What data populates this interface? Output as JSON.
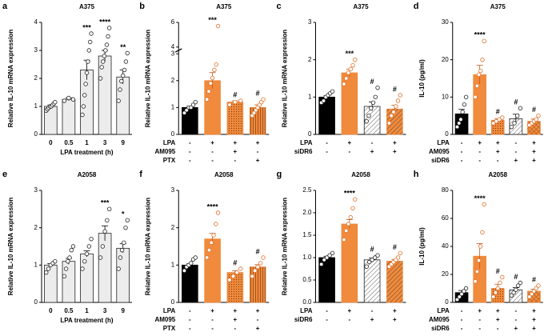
{
  "chart_data": [
    {
      "type": "bar",
      "panel": "a",
      "title": "A375",
      "ylabel": "Relative IL-10 mRNA expression",
      "xlabel": "LPA treatment (h)",
      "categories": [
        "0",
        "0.5",
        "1",
        "3",
        "9"
      ],
      "values": [
        1.0,
        1.25,
        2.3,
        2.8,
        2.05
      ],
      "errors": [
        0.05,
        0.05,
        0.35,
        0.2,
        0.25
      ],
      "points": [
        [
          0.85,
          0.9,
          0.95,
          1.0,
          1.0,
          1.05,
          1.1,
          1.15
        ],
        [
          1.2,
          1.3,
          1.25
        ],
        [
          0.7,
          1.0,
          1.4,
          1.8,
          2.2,
          2.6,
          3.0,
          3.3,
          3.6
        ],
        [
          2.0,
          2.4,
          2.6,
          2.8,
          3.0,
          3.2,
          3.5,
          3.8
        ],
        [
          1.2,
          1.6,
          1.9,
          2.1,
          2.3,
          2.6,
          2.9
        ]
      ],
      "colors": [
        "#ececec",
        "#ececec",
        "#ececec",
        "#ececec",
        "#ececec"
      ],
      "patterns": [
        null,
        null,
        null,
        null,
        null
      ],
      "annotations": [
        null,
        null,
        "***",
        "****",
        "**"
      ],
      "ylim": [
        0,
        4
      ],
      "yticks": [
        0,
        1,
        2,
        3,
        4
      ]
    },
    {
      "type": "bar",
      "panel": "b",
      "title": "A375",
      "ylabel": "Relative IL-10 mRNA expression",
      "conditions": [
        {
          "name": "LPA",
          "signs": [
            "-",
            "+",
            "+",
            "+"
          ]
        },
        {
          "name": "AM095",
          "signs": [
            "-",
            "-",
            "+",
            "-"
          ]
        },
        {
          "name": "PTX",
          "signs": [
            "-",
            "-",
            "-",
            "+"
          ]
        }
      ],
      "values": [
        1.0,
        2.0,
        1.2,
        1.0
      ],
      "errors": [
        0.05,
        0.3,
        0.05,
        0.1
      ],
      "points": [
        [
          0.8,
          0.9,
          1.0,
          1.0,
          1.1,
          1.2
        ],
        [
          1.3,
          1.6,
          1.9,
          2.1,
          2.4,
          2.6,
          5.7
        ],
        [
          1.1,
          1.2,
          1.25
        ],
        [
          0.7,
          0.8,
          0.9,
          1.0,
          1.1,
          1.2,
          1.3
        ]
      ],
      "colors": [
        "#000000",
        "#f08a3c",
        "#f08a3c",
        "#f08a3c"
      ],
      "patterns": [
        null,
        null,
        "dots",
        "vstripes"
      ],
      "annotations": [
        null,
        "***",
        "#",
        "#"
      ],
      "ylim": [
        0,
        6
      ],
      "ybreak": [
        3,
        4
      ],
      "yticks": [
        0,
        1,
        2,
        3,
        4,
        6
      ]
    },
    {
      "type": "bar",
      "panel": "c",
      "title": "A375",
      "ylabel": "Relative IL-10 mRNA expression",
      "conditions": [
        {
          "name": "LPA",
          "signs": [
            "-",
            "+",
            "-",
            "+"
          ]
        },
        {
          "name": "siDR6",
          "signs": [
            "-",
            "-",
            "+",
            "+"
          ]
        }
      ],
      "values": [
        1.0,
        1.65,
        0.75,
        0.68
      ],
      "errors": [
        0.04,
        0.1,
        0.12,
        0.1
      ],
      "points": [
        [
          0.85,
          0.9,
          1.0,
          1.05,
          1.1,
          1.15
        ],
        [
          1.35,
          1.5,
          1.65,
          1.75,
          1.85,
          2.0
        ],
        [
          0.35,
          0.5,
          0.7,
          0.85,
          1.0,
          1.25
        ],
        [
          0.3,
          0.5,
          0.6,
          0.75,
          0.9,
          1.05
        ]
      ],
      "colors": [
        "#000000",
        "#f08a3c",
        "#ffffff",
        "#f08a3c"
      ],
      "patterns": [
        null,
        null,
        "hatch",
        "hatch"
      ],
      "annotations": [
        null,
        "***",
        "#",
        "#"
      ],
      "ylim": [
        0,
        3
      ],
      "yticks": [
        0,
        1,
        2,
        3
      ]
    },
    {
      "type": "bar",
      "panel": "d",
      "title": "A375",
      "ylabel": "IL-10 (pg/ml)",
      "conditions": [
        {
          "name": "LPA",
          "signs": [
            "-",
            "+",
            "+",
            "-",
            "+"
          ]
        },
        {
          "name": "AM095",
          "signs": [
            "-",
            "-",
            "+",
            "-",
            "+"
          ]
        },
        {
          "name": "siDR6",
          "signs": [
            "-",
            "-",
            "-",
            "+",
            "+"
          ]
        }
      ],
      "values": [
        5.5,
        16,
        3.8,
        4.2,
        3.5
      ],
      "errors": [
        1.2,
        2.5,
        0.4,
        1.2,
        0.6
      ],
      "points": [
        [
          2,
          3,
          4,
          6,
          8,
          10
        ],
        [
          10,
          13,
          16,
          17,
          20,
          25
        ],
        [
          3,
          3.5,
          4,
          4.5
        ],
        [
          2,
          3,
          5,
          7
        ],
        [
          2.5,
          3,
          3.5,
          4,
          5
        ]
      ],
      "colors": [
        "#000000",
        "#f08a3c",
        "#f08a3c",
        "#ffffff",
        "#f08a3c"
      ],
      "patterns": [
        null,
        null,
        "dots",
        "hatch",
        "crosshatch"
      ],
      "annotations": [
        null,
        "****",
        "#",
        "#",
        "#"
      ],
      "ylim": [
        0,
        30
      ],
      "yticks": [
        0,
        10,
        20,
        30
      ]
    },
    {
      "type": "bar",
      "panel": "e",
      "title": "A2058",
      "ylabel": "Relative IL-10 mRNA expression",
      "xlabel": "LPA treatment (h)",
      "categories": [
        "0",
        "0.5",
        "1",
        "3",
        "9"
      ],
      "values": [
        1.0,
        1.1,
        1.3,
        1.85,
        1.45
      ],
      "errors": [
        0.04,
        0.08,
        0.08,
        0.2,
        0.12
      ],
      "points": [
        [
          0.8,
          0.9,
          1.0,
          1.05,
          1.1
        ],
        [
          0.7,
          0.9,
          1.1,
          1.2,
          1.4,
          1.5
        ],
        [
          0.9,
          1.1,
          1.3,
          1.5,
          1.7
        ],
        [
          1.2,
          1.5,
          1.9,
          2.2,
          2.5
        ],
        [
          0.9,
          1.2,
          1.4,
          1.6,
          2.0,
          2.2
        ]
      ],
      "colors": [
        "#ececec",
        "#ececec",
        "#ececec",
        "#ececec",
        "#ececec"
      ],
      "patterns": [
        null,
        null,
        null,
        null,
        null
      ],
      "annotations": [
        null,
        null,
        null,
        "***",
        "*"
      ],
      "ylim": [
        0,
        3
      ],
      "yticks": [
        0,
        1,
        2,
        3
      ]
    },
    {
      "type": "bar",
      "panel": "f",
      "title": "A2058",
      "ylabel": "Relative IL-10 mRNA expression",
      "conditions": [
        {
          "name": "LPA",
          "signs": [
            "-",
            "+",
            "+",
            "+"
          ]
        },
        {
          "name": "AM095",
          "signs": [
            "-",
            "-",
            "+",
            "-"
          ]
        },
        {
          "name": "PTX",
          "signs": [
            "-",
            "-",
            "-",
            "+"
          ]
        }
      ],
      "values": [
        1.0,
        1.7,
        0.8,
        0.95
      ],
      "errors": [
        0.04,
        0.15,
        0.05,
        0.06
      ],
      "points": [
        [
          0.85,
          0.95,
          1.0,
          1.05,
          1.15,
          1.2
        ],
        [
          1.2,
          1.4,
          1.6,
          1.8,
          2.1,
          2.4
        ],
        [
          0.6,
          0.7,
          0.8,
          0.9
        ],
        [
          0.7,
          0.85,
          0.95,
          1.05,
          1.2
        ]
      ],
      "colors": [
        "#000000",
        "#f08a3c",
        "#f08a3c",
        "#f08a3c"
      ],
      "patterns": [
        null,
        null,
        "dots",
        "vstripes"
      ],
      "annotations": [
        null,
        "****",
        "#",
        "#"
      ],
      "ylim": [
        0,
        3
      ],
      "yticks": [
        0,
        1,
        2,
        3
      ]
    },
    {
      "type": "bar",
      "panel": "g",
      "title": "A2058",
      "ylabel": "Relative IL-10 mRNA expression",
      "conditions": [
        {
          "name": "LPA",
          "signs": [
            "-",
            "+",
            "-",
            "+"
          ]
        },
        {
          "name": "siDR6",
          "signs": [
            "-",
            "-",
            "+",
            "+"
          ]
        }
      ],
      "values": [
        1.0,
        1.75,
        0.95,
        0.92
      ],
      "errors": [
        0.03,
        0.1,
        0.04,
        0.04
      ],
      "points": [
        [
          0.85,
          0.95,
          1.0,
          1.05,
          1.1
        ],
        [
          1.4,
          1.6,
          1.75,
          1.9,
          2.1,
          2.3
        ],
        [
          0.8,
          0.9,
          0.95,
          1.0,
          1.05
        ],
        [
          0.8,
          0.85,
          0.9,
          0.95,
          1.0,
          1.1
        ]
      ],
      "colors": [
        "#000000",
        "#f08a3c",
        "#ffffff",
        "#f08a3c"
      ],
      "patterns": [
        null,
        null,
        "hatch",
        "hatch"
      ],
      "annotations": [
        null,
        "****",
        "#",
        "#"
      ],
      "ylim": [
        0,
        2.5
      ],
      "yticks": [
        {
          "value": 0,
          "label": "0.0"
        },
        0.5,
        {
          "value": 1,
          "label": "1.0"
        },
        1.5,
        {
          "value": 2,
          "label": "2.0"
        },
        2.5
      ]
    },
    {
      "type": "bar",
      "panel": "h",
      "title": "A2058",
      "ylabel": "IL-10 (pg/ml)",
      "conditions": [
        {
          "name": "LPA",
          "signs": [
            "-",
            "+",
            "+",
            "-",
            "+"
          ]
        },
        {
          "name": "AM095",
          "signs": [
            "-",
            "-",
            "+",
            "-",
            "+"
          ]
        },
        {
          "name": "siDR6",
          "signs": [
            "-",
            "-",
            "-",
            "+",
            "+"
          ]
        }
      ],
      "values": [
        7,
        33,
        10,
        9,
        8
      ],
      "errors": [
        1.5,
        9,
        3,
        1.5,
        1.5
      ],
      "points": [
        [
          2,
          4,
          6,
          8,
          10
        ],
        [
          15,
          22,
          30,
          40,
          50,
          70
        ],
        [
          4,
          7,
          10,
          14,
          18
        ],
        [
          5,
          7,
          9,
          12,
          14
        ],
        [
          4,
          6,
          8,
          10,
          12
        ]
      ],
      "colors": [
        "#000000",
        "#f08a3c",
        "#f08a3c",
        "#ffffff",
        "#f08a3c"
      ],
      "patterns": [
        null,
        null,
        "dots",
        "hatch",
        "crosshatch"
      ],
      "annotations": [
        null,
        "****",
        "#",
        "#",
        "#"
      ],
      "ylim": [
        0,
        80
      ],
      "yticks": [
        0,
        20,
        40,
        60,
        80
      ]
    }
  ]
}
